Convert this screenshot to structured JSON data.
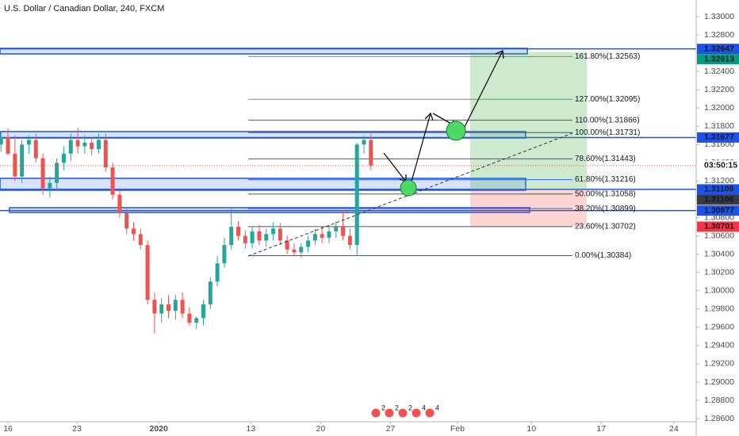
{
  "chart_data": {
    "type": "candlestick",
    "title": "U.S. Dollar / Canadian Dollar, 240, FXCM",
    "x": [
      -0.5,
      0,
      0.5,
      1,
      1.5,
      2,
      2.5,
      3,
      3.5,
      4,
      4.5,
      5,
      5.5,
      6,
      6.5,
      7,
      7.5,
      8,
      8.5,
      9,
      9.5,
      10,
      10.5,
      11,
      11.5,
      12,
      12.5,
      13,
      13.5,
      14,
      14.5,
      15,
      15.5,
      16,
      16.5,
      17,
      17.5,
      18,
      18.5,
      19,
      19.5,
      20,
      20.5,
      21,
      21.5,
      22,
      22.5,
      23,
      23.5,
      24,
      24.5,
      25,
      25.5,
      26
    ],
    "open": [
      1.316,
      1.3168,
      1.315,
      1.3125,
      1.316,
      1.3165,
      1.3145,
      1.3112,
      1.3118,
      1.314,
      1.315,
      1.3165,
      1.3158,
      1.3162,
      1.3155,
      1.3165,
      1.3135,
      1.3105,
      1.3085,
      1.3068,
      1.3062,
      1.305,
      1.299,
      1.2975,
      1.2985,
      1.2978,
      1.299,
      1.2975,
      1.2965,
      1.297,
      1.2985,
      1.301,
      1.303,
      1.305,
      1.307,
      1.306,
      1.3052,
      1.3065,
      1.3055,
      1.3062,
      1.3068,
      1.3055,
      1.3045,
      1.3042,
      1.3048,
      1.3055,
      1.3062,
      1.3058,
      1.3065,
      1.307,
      1.306,
      1.305,
      1.316,
      1.3165
    ],
    "high": [
      1.3175,
      1.3178,
      1.317,
      1.3165,
      1.317,
      1.3172,
      1.315,
      1.3125,
      1.3145,
      1.3158,
      1.3172,
      1.3178,
      1.317,
      1.3168,
      1.3172,
      1.3172,
      1.314,
      1.311,
      1.309,
      1.3075,
      1.3068,
      1.3055,
      1.2998,
      1.2992,
      1.2995,
      1.2996,
      1.2998,
      1.2982,
      1.2972,
      1.299,
      1.3015,
      1.3038,
      1.3058,
      1.309,
      1.3076,
      1.3066,
      1.307,
      1.3072,
      1.3068,
      1.3075,
      1.3074,
      1.306,
      1.3052,
      1.3052,
      1.306,
      1.3068,
      1.307,
      1.3072,
      1.3076,
      1.3088,
      1.3068,
      1.3162,
      1.317,
      1.3175
    ],
    "low": [
      1.3152,
      1.3148,
      1.312,
      1.3118,
      1.315,
      1.314,
      1.3105,
      1.3102,
      1.311,
      1.3132,
      1.3142,
      1.315,
      1.315,
      1.3148,
      1.315,
      1.313,
      1.31,
      1.308,
      1.3062,
      1.3055,
      1.3045,
      1.2985,
      1.2953,
      1.2965,
      1.297,
      1.2968,
      1.297,
      1.2962,
      1.2958,
      1.2962,
      1.298,
      1.3005,
      1.3025,
      1.3045,
      1.3055,
      1.3046,
      1.3046,
      1.305,
      1.3048,
      1.3055,
      1.305,
      1.304,
      1.3038,
      1.3036,
      1.3042,
      1.305,
      1.3052,
      1.3052,
      1.3058,
      1.3055,
      1.3045,
      1.3038,
      1.315,
      1.3132
    ],
    "close": [
      1.3168,
      1.315,
      1.3125,
      1.316,
      1.3165,
      1.3145,
      1.3112,
      1.3118,
      1.314,
      1.315,
      1.3165,
      1.3158,
      1.3162,
      1.3155,
      1.3165,
      1.3135,
      1.3105,
      1.3085,
      1.3068,
      1.3062,
      1.305,
      1.299,
      1.2975,
      1.2985,
      1.2978,
      1.299,
      1.2975,
      1.2965,
      1.297,
      1.2985,
      1.301,
      1.303,
      1.305,
      1.307,
      1.306,
      1.3052,
      1.3065,
      1.3055,
      1.3062,
      1.3068,
      1.3055,
      1.3045,
      1.3042,
      1.3048,
      1.3055,
      1.3062,
      1.3058,
      1.3065,
      1.307,
      1.306,
      1.305,
      1.316,
      1.3165,
      1.3137
    ],
    "up_color": "#26a69a",
    "down_color": "#ef5350",
    "xlim": [
      -0.57,
      49.3
    ],
    "xticks": [
      {
        "value": 0,
        "label": "16"
      },
      {
        "value": 4.94,
        "label": "23"
      },
      {
        "value": 10.8,
        "label": "2020"
      },
      {
        "value": 17.4,
        "label": "13"
      },
      {
        "value": 22.4,
        "label": "20"
      },
      {
        "value": 27.4,
        "label": "27"
      },
      {
        "value": 32.2,
        "label": "Feb"
      },
      {
        "value": 37.5,
        "label": "10"
      },
      {
        "value": 42.5,
        "label": "17"
      },
      {
        "value": 47.7,
        "label": "24"
      }
    ],
    "ylim": [
      1.28566,
      1.33182
    ],
    "yticks": [
      {
        "value": 1.33,
        "label": "1.33000"
      },
      {
        "value": 1.328,
        "label": "1.32800"
      },
      {
        "value": 1.326,
        "label": "1.32600"
      },
      {
        "value": 1.324,
        "label": "1.32400"
      },
      {
        "value": 1.322,
        "label": "1.32200"
      },
      {
        "value": 1.32,
        "label": "1.32000"
      },
      {
        "value": 1.318,
        "label": "1.31800"
      },
      {
        "value": 1.316,
        "label": "1.31600"
      },
      {
        "value": 1.314,
        "label": "1.31400"
      },
      {
        "value": 1.312,
        "label": "1.31200"
      },
      {
        "value": 1.31,
        "label": "1.31000"
      },
      {
        "value": 1.308,
        "label": "1.30800"
      },
      {
        "value": 1.306,
        "label": "1.30600"
      },
      {
        "value": 1.304,
        "label": "1.30400"
      },
      {
        "value": 1.302,
        "label": "1.30200"
      },
      {
        "value": 1.3,
        "label": "1.30000"
      },
      {
        "value": 1.298,
        "label": "1.29800"
      },
      {
        "value": 1.296,
        "label": "1.29600"
      },
      {
        "value": 1.294,
        "label": "1.29400"
      },
      {
        "value": 1.292,
        "label": "1.29200"
      },
      {
        "value": 1.29,
        "label": "1.29000"
      },
      {
        "value": 1.288,
        "label": "1.28800"
      },
      {
        "value": 1.286,
        "label": "1.28600"
      }
    ],
    "fib_levels": [
      {
        "value": 1.32563,
        "label": "161.80%(1.32563)",
        "color": "#4caf50"
      },
      {
        "value": 1.32095,
        "label": "127.00%(1.32095)",
        "color": "#4caf50"
      },
      {
        "value": 1.31866,
        "label": "110.00%(1.31866)",
        "color": "#555555"
      },
      {
        "value": 1.31731,
        "label": "100.00%(1.31731)",
        "color": "#555555"
      },
      {
        "value": 1.31443,
        "label": "78.60%(1.31443)",
        "color": "#555555"
      },
      {
        "value": 1.31216,
        "label": "61.80%(1.31216)",
        "color": "#2962ff"
      },
      {
        "value": 1.31058,
        "label": "50.00%(1.31058)",
        "color": "#555555"
      },
      {
        "value": 1.30899,
        "label": "38.20%(1.30899)",
        "color": "#2962ff"
      },
      {
        "value": 1.30702,
        "label": "23.60%(1.30702)",
        "color": "#555555"
      },
      {
        "value": 1.30384,
        "label": "0.00%(1.30384)",
        "color": "#555555"
      }
    ],
    "zones": [
      {
        "high": 1.32653,
        "low": 1.32592
      },
      {
        "high": 1.31742,
        "low": 1.31672
      },
      {
        "high": 1.3123,
        "low": 1.311
      },
      {
        "high": 1.30909,
        "low": 1.30857
      }
    ],
    "price_lines": [
      1.32647,
      1.31677,
      1.31109,
      1.30877
    ],
    "line_color": "#1e53e5",
    "position": {
      "target": 1.32613,
      "entry": 1.31106,
      "stop": 1.30701,
      "target_color": "#089981",
      "entry_color": "#363a45",
      "stop_color": "#f23645"
    },
    "countdown": "03:50:15",
    "events": [
      "2",
      "2",
      "2",
      "4",
      "4"
    ]
  }
}
